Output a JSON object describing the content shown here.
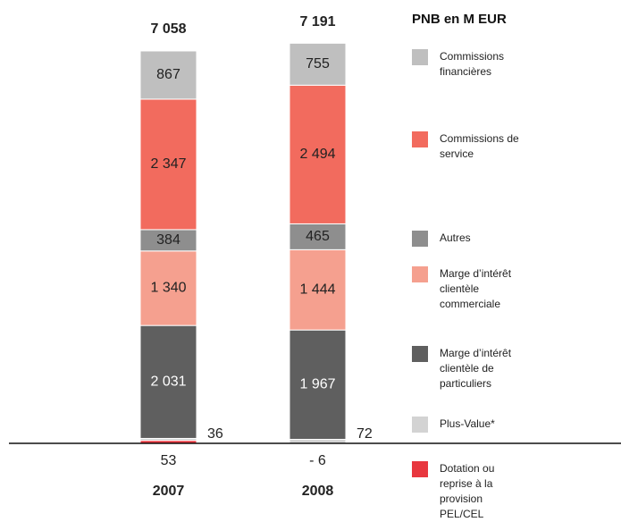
{
  "chart_data": {
    "type": "stacked_bar",
    "legend_title": "PNB en M EUR",
    "categories": [
      "2007",
      "2008"
    ],
    "totals": [
      7058,
      7191
    ],
    "total_labels": [
      "7 058",
      "7 191"
    ],
    "series": [
      {
        "name": "Dotation ou reprise à la provision PEL/CEL",
        "color": "#e8373f",
        "values": [
          53,
          -6
        ],
        "value_labels": [
          "53",
          "- 6"
        ]
      },
      {
        "name": "Plus-Value*",
        "color": "#d3d3d3",
        "values": [
          36,
          72
        ],
        "value_labels": [
          "36",
          "72"
        ]
      },
      {
        "name": "Marge d’intérêt clientèle de particuliers",
        "color": "#5f5f5f",
        "values": [
          2031,
          1967
        ],
        "value_labels": [
          "2 031",
          "1 967"
        ]
      },
      {
        "name": "Marge d’intérêt clientèle commerciale",
        "color": "#f5a08f",
        "values": [
          1340,
          1444
        ],
        "value_labels": [
          "1 340",
          "1 444"
        ]
      },
      {
        "name": "Autres",
        "color": "#8e8e8e",
        "values": [
          384,
          465
        ],
        "value_labels": [
          "384",
          "465"
        ]
      },
      {
        "name": "Commissions de service",
        "color": "#f26b5e",
        "values": [
          2347,
          2494
        ],
        "value_labels": [
          "2 347",
          "2 494"
        ]
      },
      {
        "name": "Commissions financières",
        "color": "#bfbfbf",
        "values": [
          867,
          755
        ],
        "value_labels": [
          "867",
          "755"
        ]
      }
    ]
  }
}
